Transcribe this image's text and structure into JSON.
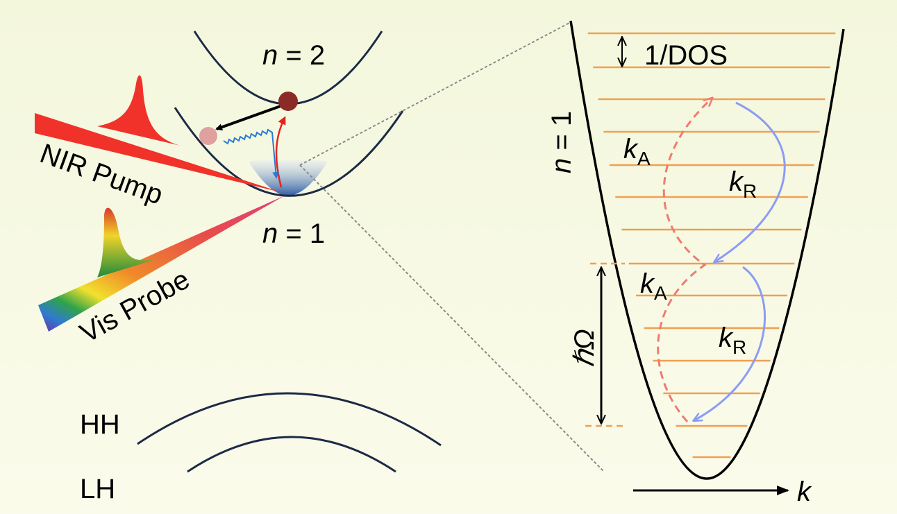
{
  "left": {
    "n2": {
      "var": "n",
      "rest": " = 2"
    },
    "n1": {
      "var": "n",
      "rest": " = 1"
    },
    "pump": "NIR Pump",
    "probe": "Vis Probe",
    "hh": "HH",
    "lh": "LH"
  },
  "right": {
    "dos": "1/DOS",
    "n1": {
      "var": "n",
      "rest": " = 1"
    },
    "ka_top": {
      "sym": "k",
      "sub": "A"
    },
    "kr_top": {
      "sym": "k",
      "sub": "R"
    },
    "ka_bottom": {
      "sym": "k",
      "sub": "A"
    },
    "kr_bottom": {
      "sym": "k",
      "sub": "R"
    },
    "phonon": "ℏΩ",
    "axis": "k"
  }
}
